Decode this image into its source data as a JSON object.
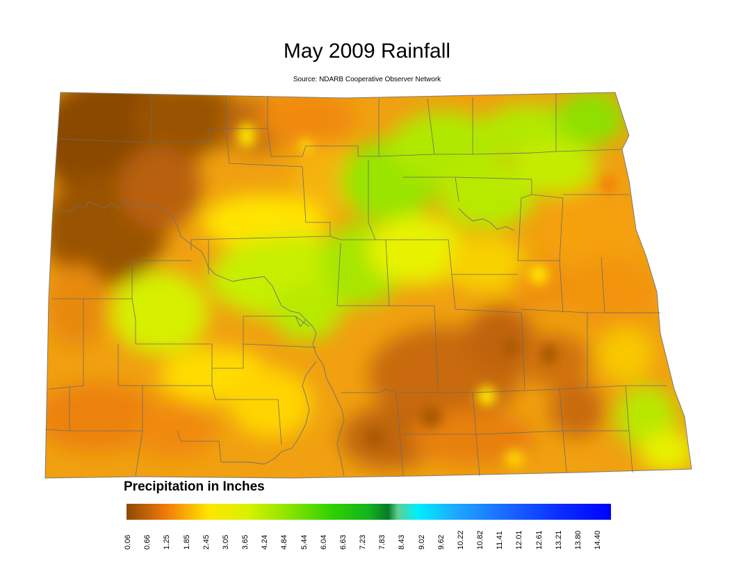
{
  "map": {
    "title": "May 2009 Rainfall",
    "source": "Source: NDARB Cooperative Observer Network",
    "region": "North Dakota",
    "month": "May 2009",
    "variable": "Precipitation"
  },
  "legend": {
    "title": "Precipitation in Inches",
    "unit": "inches",
    "ticks": [
      "0.06",
      "0.66",
      "1.25",
      "1.85",
      "2.45",
      "3.05",
      "3.65",
      "4.24",
      "4.84",
      "5.44",
      "6.04",
      "6.63",
      "7.23",
      "7.83",
      "8.43",
      "9.02",
      "9.62",
      "10.22",
      "10.82",
      "11.41",
      "12.01",
      "12.61",
      "13.21",
      "13.80",
      "14.40"
    ],
    "colors": {
      "dry": "#8b4a06",
      "low": "#f28c0a",
      "mid_low": "#ffea00",
      "mid": "#8fe600",
      "mid_high": "#1fc41f",
      "high": "#0a8a2a",
      "cyan": "#00f0ff",
      "blue_mid": "#1e7fff",
      "blue_high": "#0000ff"
    }
  }
}
